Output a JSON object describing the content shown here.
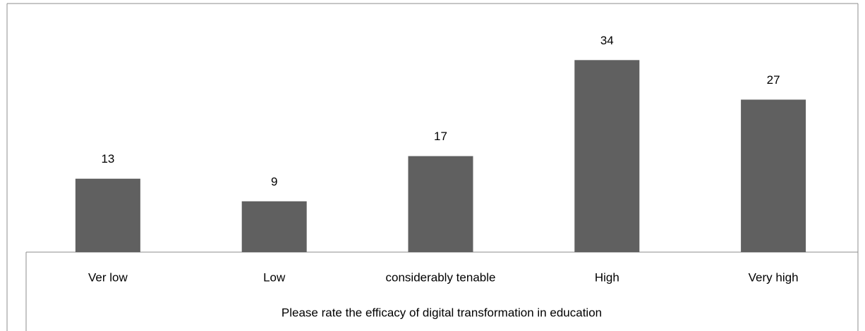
{
  "chart_data": {
    "type": "bar",
    "x_label": "Please rate the efficacy of digital transformation in education",
    "categories": [
      "Ver low",
      "Low",
      "considerably tenable",
      "High",
      "Very high"
    ],
    "values": [
      13,
      9,
      17,
      34,
      27
    ],
    "color": "#606060"
  }
}
